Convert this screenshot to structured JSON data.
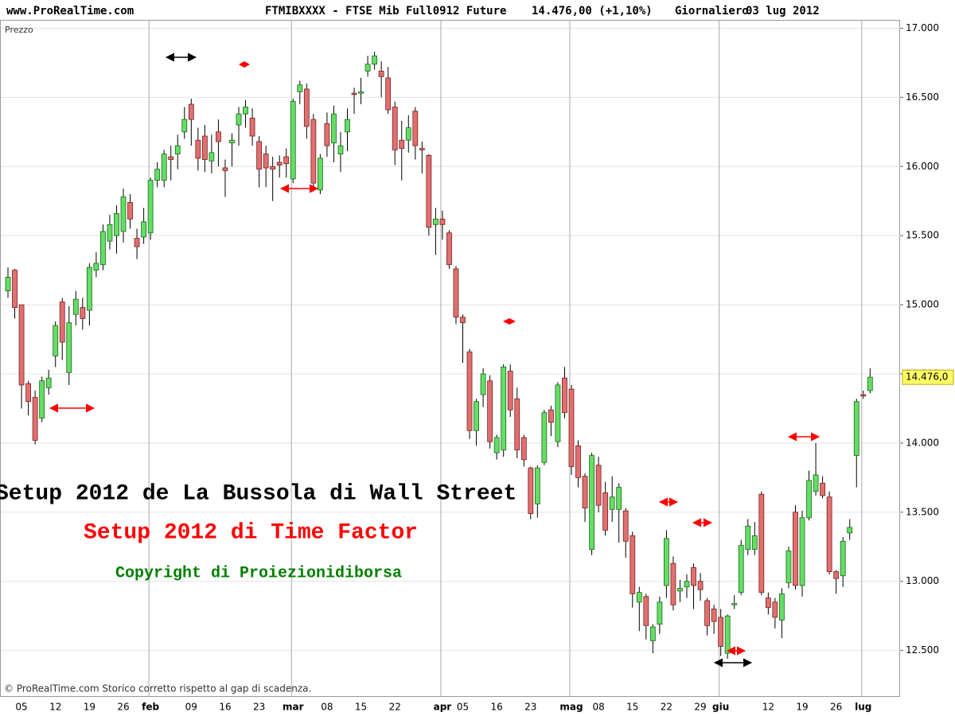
{
  "header": {
    "site": "www.ProRealTime.com",
    "instrument": "FTMIBXXXX - FTSE Mib Full0912 Future",
    "price_info": "14.476,00 (+1,10%)",
    "period": "Giornaliero",
    "date": "03 lug 2012"
  },
  "footer": "© ProRealTime.com Storico corretto rispetto al gap di scadenza.",
  "chart_data": {
    "type": "candlestick",
    "y_label": "Prezzo",
    "up_color": "#66dd66",
    "down_color": "#e07070",
    "grid": true,
    "ylim": [
      12170,
      17060
    ],
    "yticks": [
      {
        "value": 12500,
        "label": "12.500"
      },
      {
        "value": 13000,
        "label": "13.000"
      },
      {
        "value": 13500,
        "label": "13.500"
      },
      {
        "value": 14000,
        "label": "14.000"
      },
      {
        "value": 14500,
        "label": "14.500"
      },
      {
        "value": 15000,
        "label": "15.000"
      },
      {
        "value": 15500,
        "label": "15.500"
      },
      {
        "value": 16000,
        "label": "16.000"
      },
      {
        "value": 16500,
        "label": "16.500"
      },
      {
        "value": 17000,
        "label": "17.000"
      }
    ],
    "last_price": {
      "value": 14476,
      "label": "14.476,0"
    },
    "annotations": [
      {
        "text": "Setup 2012 de La Bussola di Wall Street",
        "color": "#000000"
      },
      {
        "text": "Setup 2012 di Time Factor",
        "color": "#ff0000"
      },
      {
        "text": "Copyright di Proiezionidiborsa",
        "color": "#008000"
      }
    ],
    "categories": [
      null,
      null,
      "05",
      null,
      null,
      null,
      null,
      "12",
      null,
      null,
      null,
      null,
      "19",
      null,
      null,
      null,
      null,
      "26",
      null,
      null,
      null,
      "feb",
      null,
      null,
      null,
      null,
      null,
      "09",
      null,
      null,
      null,
      null,
      "16",
      null,
      null,
      null,
      null,
      "23",
      null,
      null,
      null,
      null,
      "mar",
      null,
      null,
      null,
      null,
      "08",
      null,
      null,
      null,
      null,
      "15",
      null,
      null,
      null,
      null,
      "22",
      null,
      null,
      null,
      null,
      null,
      null,
      "apr",
      null,
      null,
      "05",
      null,
      null,
      null,
      null,
      "16",
      null,
      null,
      null,
      null,
      "23",
      null,
      null,
      null,
      null,
      null,
      "mag",
      null,
      null,
      null,
      "08",
      null,
      null,
      null,
      null,
      "15",
      null,
      null,
      null,
      null,
      "22",
      null,
      null,
      null,
      null,
      "29",
      null,
      null,
      "giu",
      null,
      null,
      null,
      null,
      null,
      null,
      "12",
      null,
      null,
      null,
      null,
      "19",
      null,
      null,
      null,
      null,
      "26",
      null,
      null,
      null,
      "lug",
      null
    ],
    "open": [
      15100,
      15250,
      15000,
      14430,
      14330,
      14180,
      14400,
      14630,
      15020,
      14510,
      14930,
      14980,
      14960,
      15250,
      15290,
      15460,
      15500,
      15530,
      15740,
      15480,
      15490,
      15520,
      15900,
      15900,
      16070,
      16090,
      16250,
      16450,
      16190,
      16220,
      16040,
      16250,
      15990,
      16170,
      16300,
      16380,
      16350,
      16180,
      16090,
      16000,
      16030,
      16070,
      15910,
      16540,
      16560,
      16340,
      15830,
      16310,
      16170,
      16090,
      16250,
      16530,
      16530,
      16690,
      16740,
      16690,
      16640,
      16430,
      16190,
      16190,
      16400,
      16130,
      16080,
      15580,
      15620,
      15520,
      15260,
      14910,
      14660,
      14090,
      14350,
      14450,
      13930,
      13950,
      14520,
      14320,
      14040,
      13820,
      13560,
      13860,
      14240,
      14010,
      14470,
      14390,
      13980,
      13760,
      13230,
      13840,
      13640,
      13520,
      13520,
      13510,
      13330,
      12850,
      12890,
      12570,
      12690,
      12970,
      13130,
      12930,
      12960,
      13100,
      13000,
      12860,
      12800,
      12740,
      12480,
      12830,
      12920,
      13230,
      13230,
      13630,
      12880,
      12850,
      12720,
      12990,
      13500,
      12970,
      13460,
      13650,
      13710,
      13610,
      13070,
      13040,
      13350,
      13910,
      14350,
      14380
    ],
    "high": [
      15270,
      15260,
      15000,
      14450,
      14380,
      14480,
      14530,
      14880,
      15050,
      14990,
      15100,
      15050,
      15300,
      15380,
      15580,
      15650,
      15720,
      15840,
      15800,
      15550,
      15700,
      15920,
      16030,
      16120,
      16150,
      16230,
      16430,
      16490,
      16280,
      16300,
      16230,
      16340,
      16050,
      16240,
      16430,
      16480,
      16420,
      16220,
      16150,
      16070,
      16080,
      16130,
      16490,
      16620,
      16600,
      16380,
      16090,
      16390,
      16440,
      16250,
      16420,
      16570,
      16640,
      16800,
      16830,
      16760,
      16720,
      16470,
      16330,
      16370,
      16430,
      16180,
      16090,
      15700,
      15680,
      15540,
      15280,
      14930,
      14680,
      14320,
      14540,
      14490,
      14060,
      14570,
      14570,
      14400,
      14060,
      13830,
      13840,
      14240,
      14270,
      14440,
      14550,
      14420,
      14020,
      13780,
      13930,
      13900,
      13720,
      13760,
      13710,
      13530,
      13360,
      12960,
      12910,
      12690,
      12890,
      13370,
      13180,
      13010,
      13050,
      13130,
      13060,
      12880,
      12830,
      12800,
      12760,
      12900,
      13300,
      13450,
      13430,
      13650,
      12920,
      12880,
      12950,
      13250,
      13550,
      13510,
      13800,
      14000,
      13760,
      13650,
      13080,
      13320,
      13450,
      14320,
      14380,
      14540
    ],
    "low": [
      15050,
      14900,
      14250,
      14200,
      13990,
      14150,
      14350,
      14550,
      14600,
      14420,
      14850,
      14820,
      14850,
      15200,
      15250,
      15400,
      15370,
      15450,
      15550,
      15330,
      15440,
      15470,
      15850,
      15850,
      15900,
      15980,
      16200,
      16150,
      15970,
      15960,
      15950,
      16000,
      15780,
      16000,
      16150,
      16280,
      16150,
      15850,
      15850,
      15750,
      15920,
      15920,
      15880,
      16450,
      16200,
      15820,
      15800,
      16070,
      16030,
      15960,
      16110,
      16380,
      16450,
      16650,
      16700,
      16500,
      16380,
      16010,
      15900,
      16100,
      16050,
      15950,
      15500,
      15360,
      15470,
      15260,
      14860,
      14580,
      14030,
      13980,
      14260,
      13960,
      13880,
      13900,
      14190,
      13890,
      13830,
      13450,
      13460,
      13840,
      14050,
      13970,
      14180,
      13770,
      13680,
      13430,
      13190,
      13500,
      13330,
      13430,
      13280,
      13170,
      12810,
      12640,
      12580,
      12480,
      12620,
      12880,
      12790,
      12850,
      12880,
      12800,
      12860,
      12610,
      12620,
      12460,
      12440,
      12800,
      12900,
      13190,
      13190,
      12900,
      12760,
      12660,
      12590,
      12950,
      12940,
      12890,
      13440,
      13620,
      13600,
      13050,
      12910,
      12960,
      13300,
      13680,
      14320,
      14360
    ],
    "close": [
      15200,
      14980,
      14420,
      14300,
      14020,
      14450,
      14470,
      14850,
      14730,
      14870,
      15040,
      14900,
      15270,
      15300,
      15530,
      15580,
      15660,
      15780,
      15620,
      15420,
      15600,
      15900,
      15980,
      16090,
      16050,
      16150,
      16340,
      16340,
      16060,
      16050,
      16100,
      16180,
      15970,
      16190,
      16380,
      16430,
      16220,
      15980,
      15990,
      15980,
      16010,
      16020,
      16470,
      16590,
      16290,
      15880,
      16060,
      16150,
      16380,
      16150,
      16340,
      16520,
      16540,
      16740,
      16800,
      16650,
      16410,
      16120,
      16130,
      16280,
      16150,
      16120,
      15560,
      15620,
      15580,
      15290,
      14910,
      14870,
      14090,
      14300,
      14500,
      14010,
      14040,
      14550,
      14240,
      13950,
      13880,
      13490,
      13820,
      14220,
      14150,
      14420,
      14220,
      13830,
      13750,
      13530,
      13910,
      13550,
      13370,
      13610,
      13680,
      13290,
      12910,
      12920,
      12680,
      12670,
      12850,
      13310,
      12830,
      12950,
      13000,
      12970,
      12940,
      12680,
      12710,
      12530,
      12750,
      12840,
      13260,
      13400,
      13330,
      12920,
      12810,
      12740,
      12910,
      13220,
      12970,
      13460,
      13730,
      13770,
      13620,
      13070,
      13020,
      13290,
      13390,
      14300,
      14340,
      14476
    ]
  }
}
